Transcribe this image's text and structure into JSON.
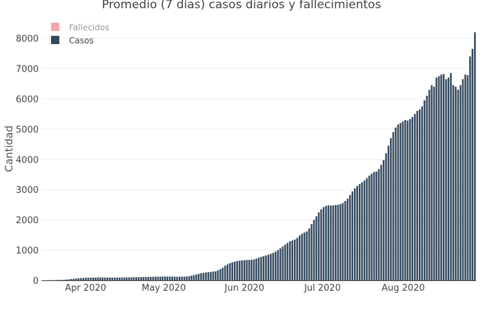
{
  "chart_data": {
    "type": "bar",
    "title": "Promedio (7 días) casos diarios y fallecimientos",
    "xlabel": "",
    "ylabel": "Cantidad",
    "ylim": [
      0,
      8400
    ],
    "yticks": [
      0,
      1000,
      2000,
      3000,
      4000,
      5000,
      6000,
      7000,
      8000
    ],
    "x_start": "2020-03-15",
    "x_end": "2020-08-29",
    "xticks": [
      {
        "date": "2020-04-01",
        "label": "Apr 2020"
      },
      {
        "date": "2020-05-01",
        "label": "May 2020"
      },
      {
        "date": "2020-06-01",
        "label": "Jun 2020"
      },
      {
        "date": "2020-07-01",
        "label": "Jul 2020"
      },
      {
        "date": "2020-08-01",
        "label": "Aug 2020"
      }
    ],
    "grid": true,
    "legend": "top-left",
    "series": [
      {
        "name": "Fallecidos",
        "color": "#f4a6a6",
        "hidden": true,
        "values": []
      },
      {
        "name": "Casos",
        "color": "#34495e",
        "values": [
          2,
          3,
          4,
          6,
          8,
          10,
          12,
          15,
          18,
          22,
          28,
          35,
          45,
          55,
          65,
          72,
          78,
          82,
          85,
          88,
          90,
          92,
          94,
          95,
          95,
          96,
          95,
          94,
          93,
          92,
          92,
          93,
          94,
          95,
          96,
          98,
          100,
          102,
          104,
          105,
          106,
          108,
          110,
          112,
          114,
          116,
          118,
          120,
          122,
          124,
          126,
          128,
          128,
          126,
          124,
          122,
          120,
          120,
          122,
          125,
          130,
          140,
          155,
          175,
          195,
          215,
          235,
          250,
          262,
          272,
          280,
          290,
          300,
          330,
          370,
          420,
          480,
          530,
          570,
          600,
          620,
          640,
          650,
          660,
          668,
          672,
          676,
          680,
          690,
          720,
          750,
          775,
          800,
          825,
          850,
          880,
          910,
          950,
          1000,
          1060,
          1120,
          1180,
          1240,
          1290,
          1320,
          1350,
          1400,
          1480,
          1540,
          1580,
          1620,
          1720,
          1860,
          2000,
          2120,
          2250,
          2350,
          2420,
          2460,
          2480,
          2470,
          2480,
          2490,
          2500,
          2520,
          2560,
          2620,
          2700,
          2820,
          2940,
          3040,
          3120,
          3180,
          3240,
          3300,
          3380,
          3460,
          3520,
          3580,
          3600,
          3680,
          3820,
          3980,
          4200,
          4450,
          4700,
          4900,
          5050,
          5150,
          5200,
          5250,
          5300,
          5280,
          5330,
          5400,
          5500,
          5600,
          5650,
          5750,
          5950,
          6100,
          6300,
          6450,
          6400,
          6700,
          6750,
          6800,
          6820,
          6650,
          6700,
          6850,
          6450,
          6400,
          6300,
          6450,
          6650,
          6800,
          6780,
          7400,
          7650,
          8200
        ]
      }
    ]
  }
}
